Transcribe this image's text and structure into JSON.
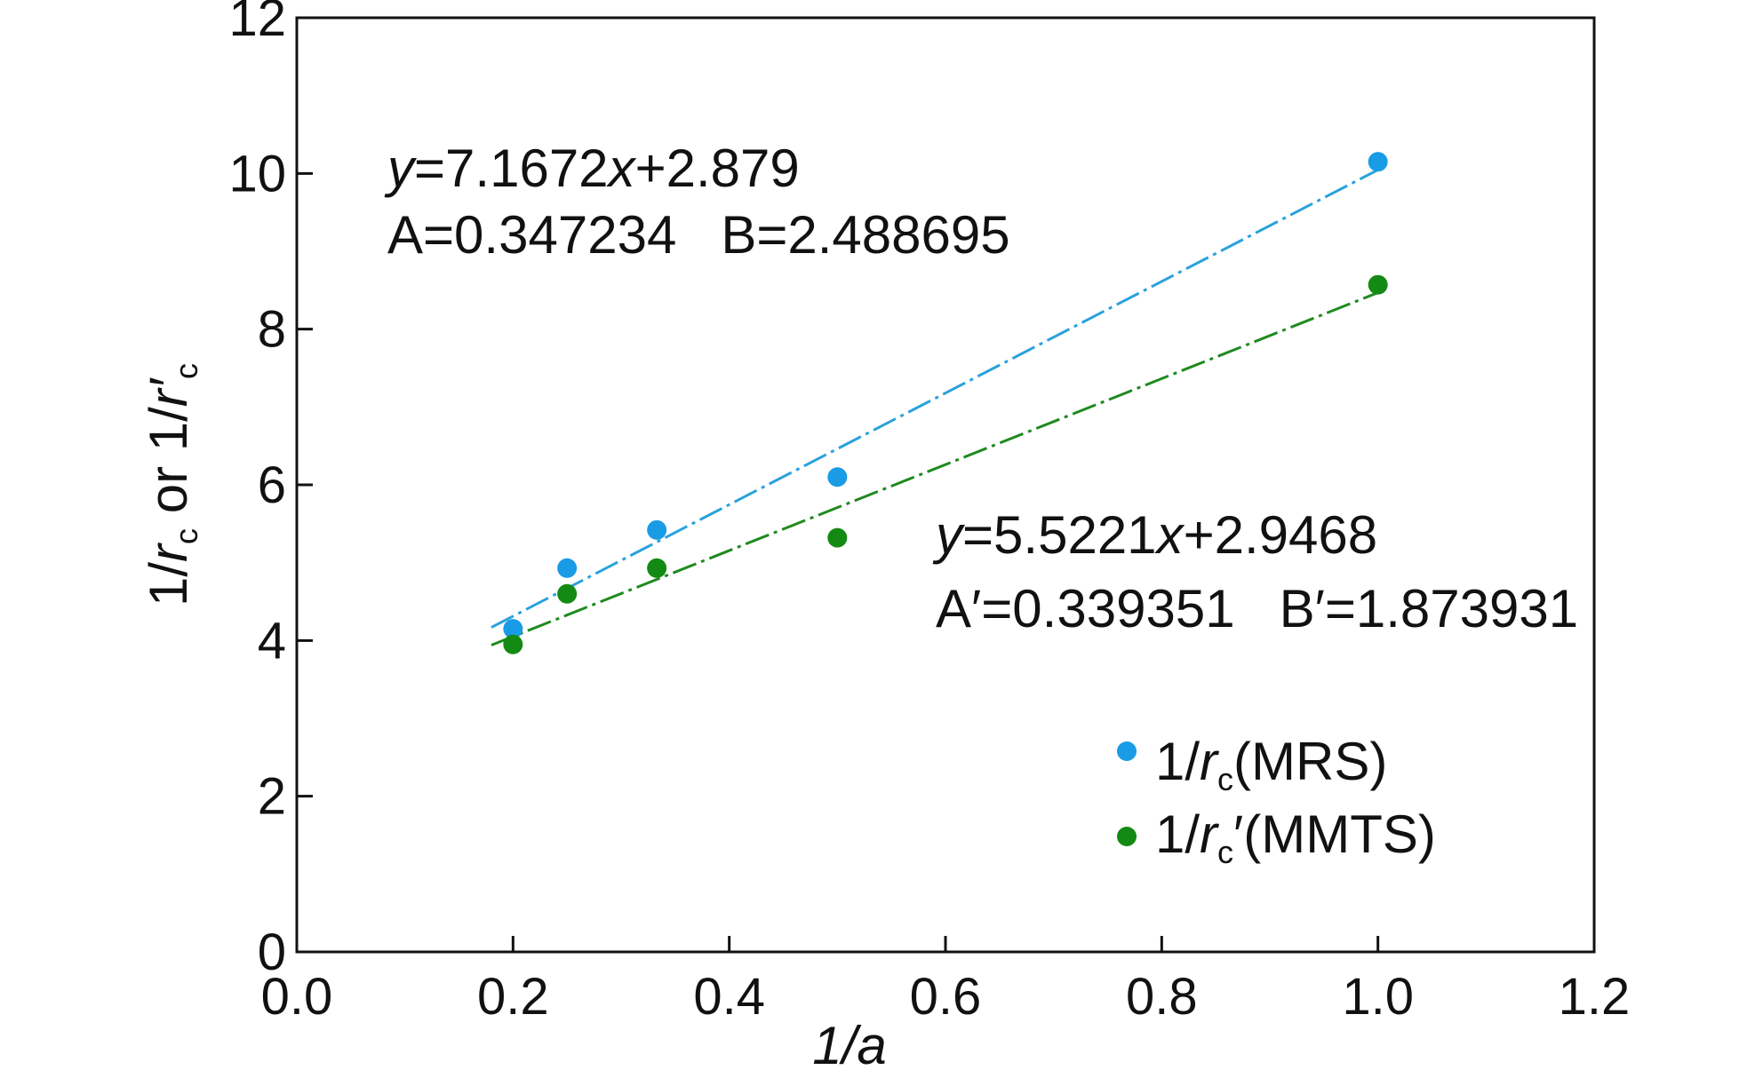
{
  "chart_data": {
    "type": "scatter",
    "xlabel": "1/a",
    "ylabel": "1/rc or 1/rc′",
    "xlim": [
      0.0,
      1.2
    ],
    "ylim": [
      0,
      12
    ],
    "x_ticks": [
      "0.0",
      "0.2",
      "0.4",
      "0.6",
      "0.8",
      "1.0",
      "1.2"
    ],
    "y_ticks": [
      "0",
      "2",
      "4",
      "6",
      "8",
      "10",
      "12"
    ],
    "grid": false,
    "legend_position": "bottom-right",
    "series": [
      {
        "name": "1/rc(MRS)",
        "color": "#1a9be6",
        "x": [
          0.2,
          0.25,
          0.333,
          0.5,
          1.0
        ],
        "y": [
          4.15,
          4.93,
          5.42,
          6.1,
          10.15
        ],
        "fit": {
          "slope": 7.1672,
          "intercept": 2.879,
          "x_range": [
            0.18,
            1.0
          ],
          "color": "#2aa2dc"
        }
      },
      {
        "name": "1/rc′(MMTS)",
        "color": "#138a13",
        "x": [
          0.2,
          0.25,
          0.333,
          0.5,
          1.0
        ],
        "y": [
          3.95,
          4.6,
          4.93,
          5.32,
          8.57
        ],
        "fit": {
          "slope": 5.5221,
          "intercept": 2.9468,
          "x_range": [
            0.18,
            1.0
          ],
          "color": "#1f8a1f"
        }
      }
    ],
    "annotations": [
      {
        "line1": {
          "y": "y",
          "eq": "=7.1672",
          "x": "x",
          "rest": "+2.879"
        },
        "line2": "A=0.347234   B=2.488695"
      },
      {
        "line1": {
          "y": "y",
          "eq": "=5.5221",
          "x": "x",
          "rest": "+2.9468"
        },
        "line2": "A′=0.339351   B′=1.873931"
      }
    ]
  }
}
